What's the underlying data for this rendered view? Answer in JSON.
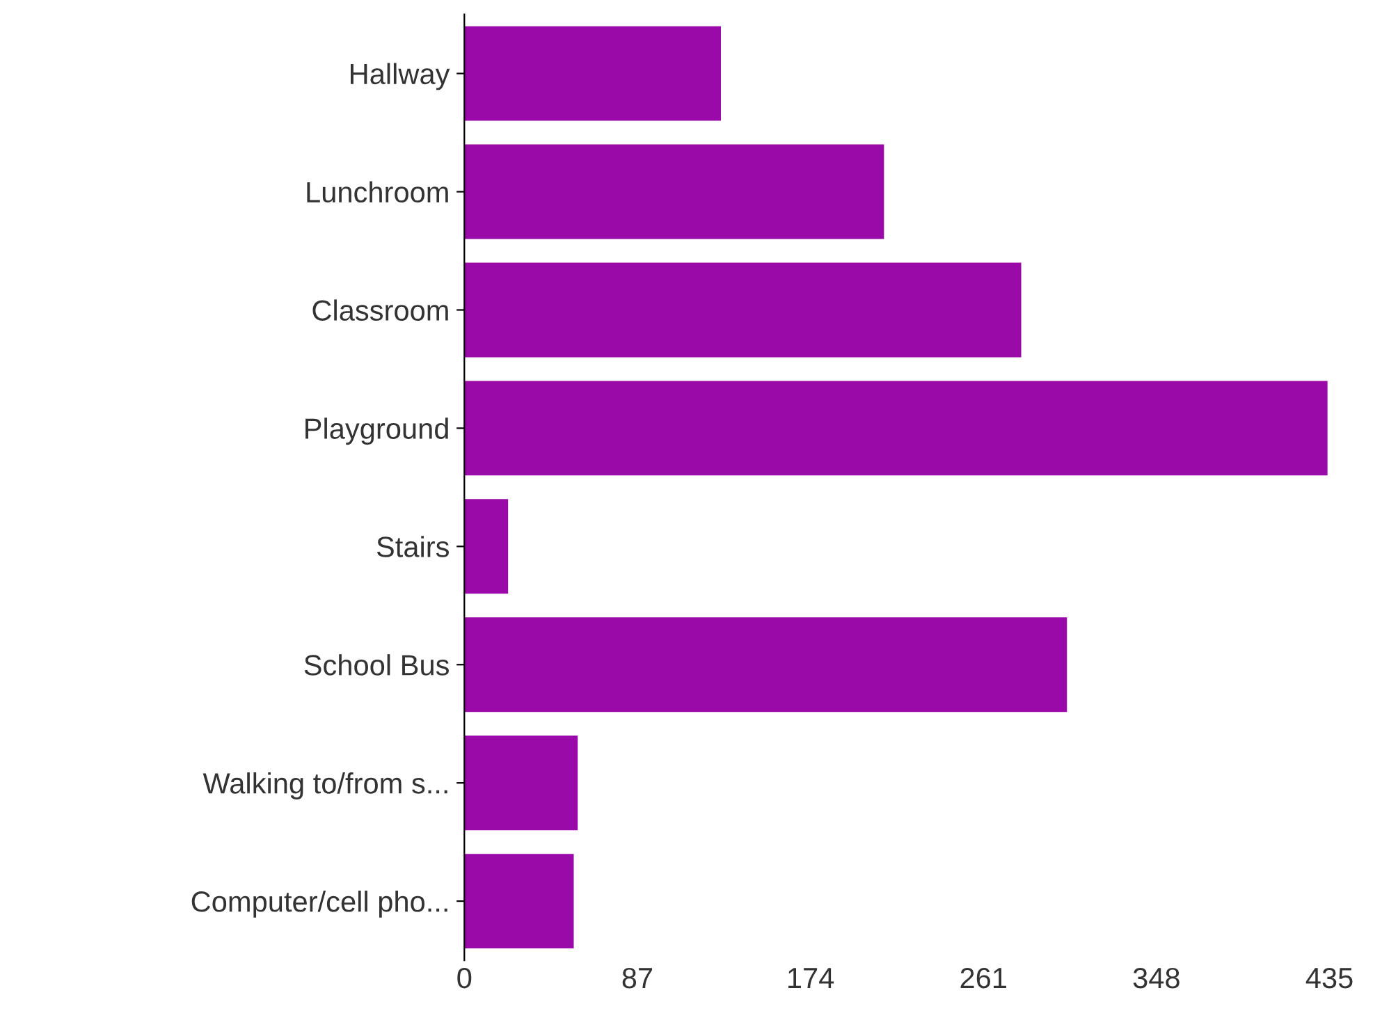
{
  "chart_data": {
    "type": "bar",
    "orientation": "horizontal",
    "categories": [
      "Hallway",
      "Lunchroom",
      "Classroom",
      "Playground",
      "Stairs",
      "School Bus",
      "Walking to/from s...",
      "Computer/cell pho..."
    ],
    "values": [
      129,
      211,
      280,
      434,
      22,
      303,
      57,
      55
    ],
    "color": "#9a0aa8",
    "xlim": [
      0,
      435
    ],
    "xticks": [
      0,
      87,
      174,
      261,
      348,
      435
    ],
    "grid": false,
    "legend": false
  }
}
